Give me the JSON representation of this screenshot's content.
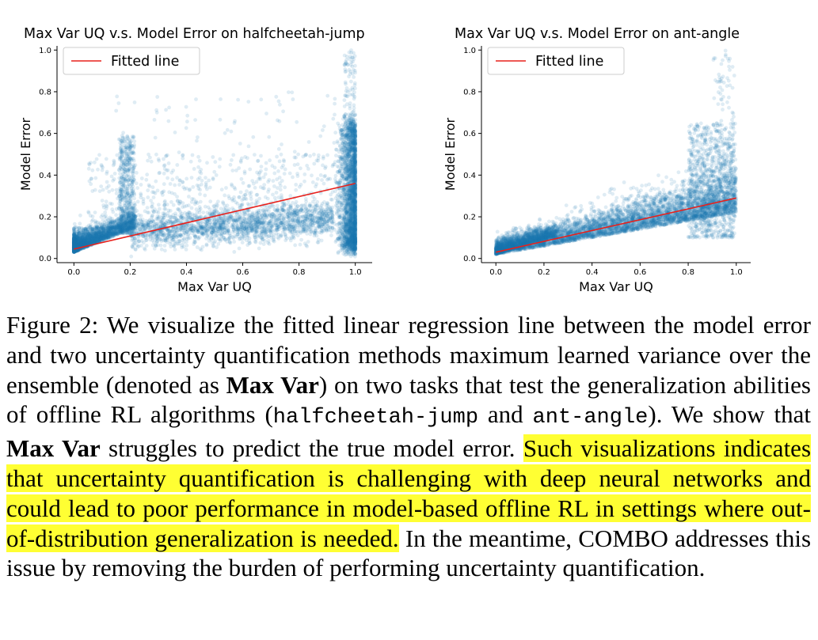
{
  "chart_data": [
    {
      "type": "scatter",
      "title": "Max Var UQ v.s. Model Error on halfcheetah-jump",
      "xlabel": "Max Var UQ",
      "ylabel": "Model Error",
      "xlim": [
        -0.06,
        1.06
      ],
      "ylim": [
        -0.02,
        1.02
      ],
      "xticks": [
        "0.0",
        "0.2",
        "0.4",
        "0.6",
        "0.8",
        "1.0"
      ],
      "yticks": [
        "0.0",
        "0.2",
        "0.4",
        "0.6",
        "0.8",
        "1.0"
      ],
      "legend": {
        "entries": [
          "Fitted line"
        ],
        "placement": "top-left"
      },
      "grid": false,
      "fitted_line": {
        "x": [
          0.0,
          1.0
        ],
        "y": [
          0.045,
          0.36
        ]
      },
      "point_color": "#1f77b4",
      "line_color": "#e8201b"
    },
    {
      "type": "scatter",
      "title": "Max Var UQ v.s. Model Error on ant-angle",
      "xlabel": "Max Var UQ",
      "ylabel": "Model Error",
      "xlim": [
        -0.06,
        1.06
      ],
      "ylim": [
        -0.02,
        1.02
      ],
      "xticks": [
        "0.0",
        "0.2",
        "0.4",
        "0.6",
        "0.8",
        "1.0"
      ],
      "yticks": [
        "0.0",
        "0.2",
        "0.4",
        "0.6",
        "0.8",
        "1.0"
      ],
      "legend": {
        "entries": [
          "Fitted line"
        ],
        "placement": "top-left"
      },
      "grid": false,
      "fitted_line": {
        "x": [
          0.0,
          1.0
        ],
        "y": [
          0.03,
          0.29
        ]
      },
      "point_color": "#1f77b4",
      "line_color": "#e8201b"
    }
  ],
  "caption": {
    "label": "Figure 2:",
    "seg1": " We visualize the fitted linear regression line between the model error and two uncertainty quantification methods maximum learned variance over the ensemble (denoted as ",
    "bold1": "Max Var",
    "seg2": ") on two tasks that test the generalization abilities of offline RL algorithms (",
    "code1": "halfcheetah-jump",
    "seg3": " and ",
    "code2": "ant-angle",
    "seg4": "). We show that ",
    "bold2": "Max Var",
    "seg5": " struggles to predict the true model error. ",
    "highlight": "Such visualizations indicates that uncertainty quantification is challenging with deep neural networks and could lead to poor performance in model-based offline RL in settings where out-of-distribution generalization is needed.",
    "seg6": " In the meantime, COMBO addresses this issue by removing the burden of performing uncertainty quantification."
  }
}
